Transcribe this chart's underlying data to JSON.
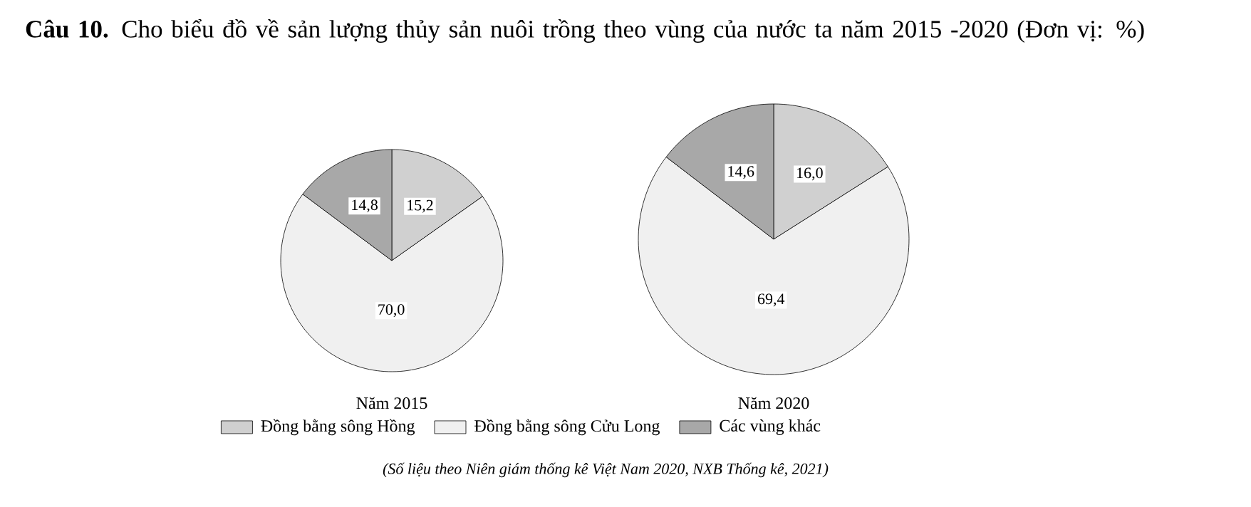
{
  "chart_data": [
    {
      "type": "pie",
      "title": "**Câu 10.** Cho biểu đồ về sản lượng thủy sản nuôi trồng theo vùng của nước ta năm 2015 -2020 (Đơn vị: %)",
      "subtitle": "Năm 2015",
      "categories": [
        "Đồng bằng sông Hồng",
        "Đồng bằng sông Cửu Long",
        "Các vùng khác"
      ],
      "values": [
        15.2,
        70.0,
        14.8
      ],
      "value_labels": [
        "15,2",
        "70,0",
        "14,8"
      ],
      "colors": [
        "#d0d0d0",
        "#f0f0f0",
        "#a8a8a8"
      ],
      "legend": "bottom",
      "annotations": [
        "(Số liệu theo Niên giám thống kê Việt Nam 2020, NXB Thống kê, 2021)"
      ]
    },
    {
      "type": "pie",
      "subtitle": "Năm 2020",
      "categories": [
        null,
        null,
        null
      ],
      "values": [
        16.0,
        69.4,
        14.6
      ],
      "value_labels": [
        "16,0",
        "69,4",
        "14,6"
      ],
      "colors": [
        "#d0d0d0",
        "#f0f0f0",
        "#a8a8a8"
      ]
    }
  ]
}
